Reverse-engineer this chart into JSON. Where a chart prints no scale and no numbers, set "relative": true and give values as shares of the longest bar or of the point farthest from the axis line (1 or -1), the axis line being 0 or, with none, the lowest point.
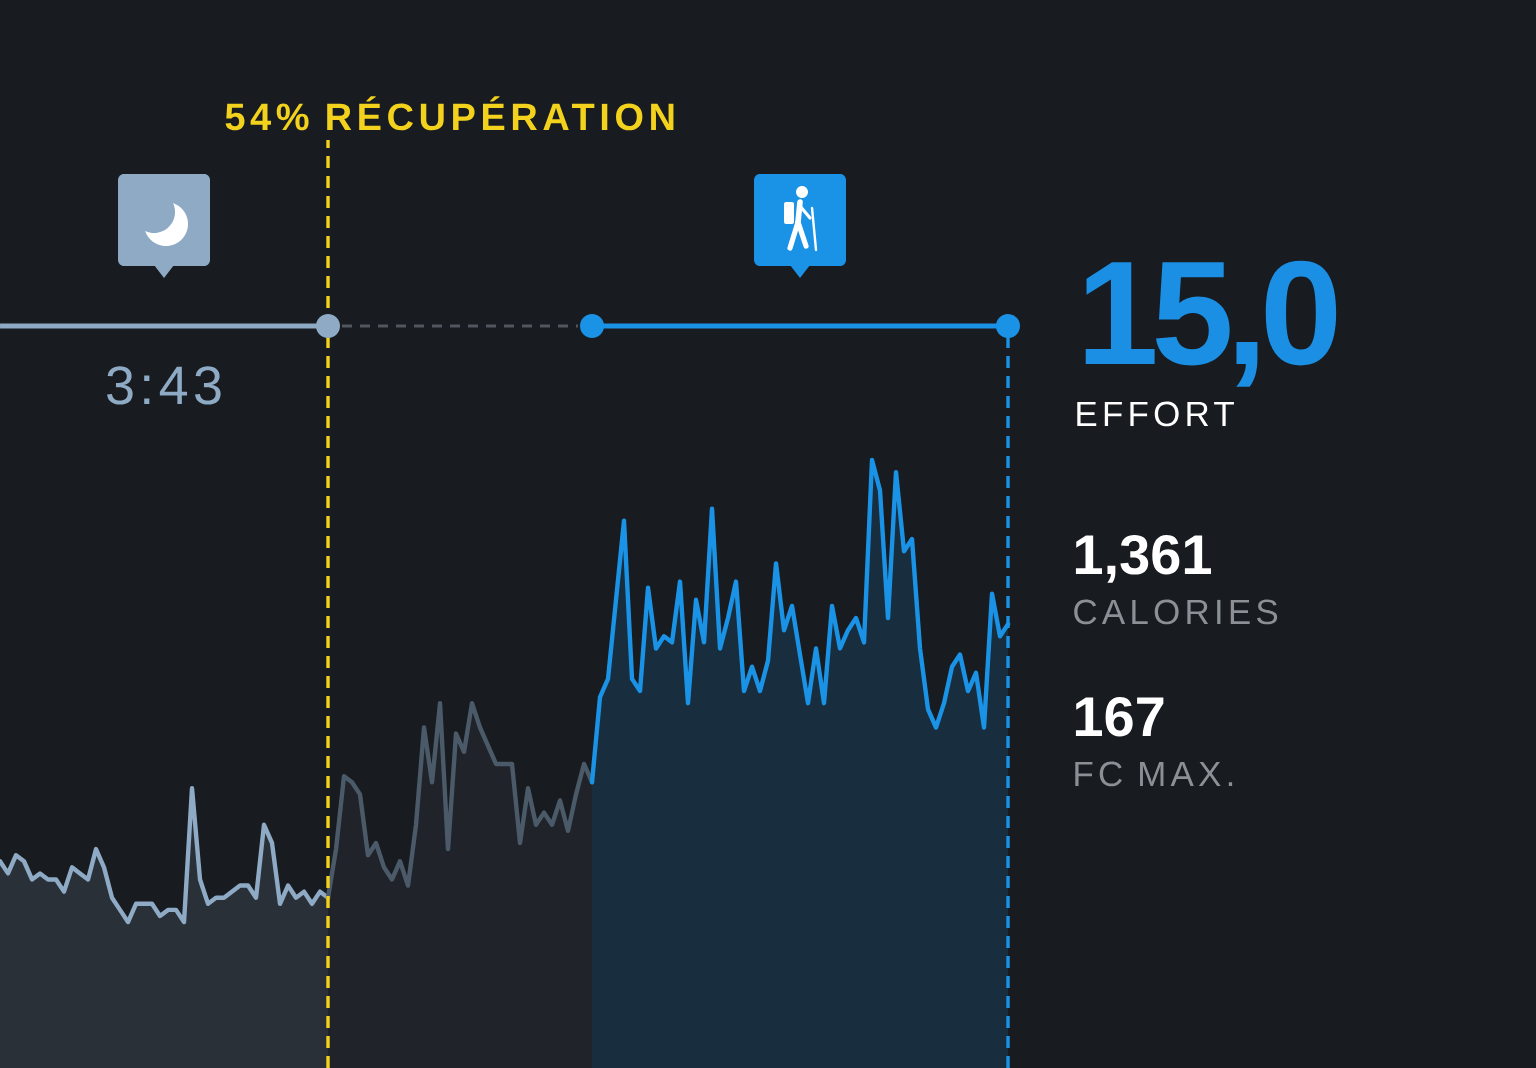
{
  "chart_data": [
    {
      "type": "area",
      "relative": true,
      "categories": [
        null,
        null,
        null,
        null,
        null,
        null,
        null,
        null,
        null,
        null,
        null,
        null,
        null,
        null,
        null,
        null,
        null,
        null,
        null,
        null,
        null,
        null,
        null,
        null,
        null,
        null,
        null,
        null,
        null,
        null,
        null,
        null,
        null,
        null,
        null,
        null,
        null,
        null,
        null,
        null,
        null,
        null,
        null,
        null,
        null,
        null,
        null,
        null,
        null,
        null,
        null,
        null,
        null,
        null,
        null,
        null,
        null,
        null,
        null,
        null,
        null,
        null,
        null,
        null,
        null,
        null,
        null,
        null,
        null,
        null,
        null,
        null,
        null,
        null,
        null,
        null,
        null,
        null,
        null,
        null,
        null,
        null,
        null,
        null,
        null,
        null,
        null,
        null,
        null,
        null,
        null,
        null,
        null,
        null,
        null,
        null,
        null,
        null,
        null,
        null,
        null,
        null,
        null,
        null,
        null,
        null,
        null,
        null,
        null,
        null,
        null,
        null,
        null,
        null,
        null,
        null,
        null,
        null,
        null,
        null,
        null,
        null,
        null,
        null,
        null,
        null,
        null
      ],
      "series": [
        {
          "color": "#8eaac4",
          "values": [
            0.34,
            0.32,
            0.35,
            0.34,
            0.31,
            0.32,
            0.31,
            0.31,
            0.29,
            0.33,
            0.32,
            0.31,
            0.36,
            0.33,
            0.28,
            0.26,
            0.24,
            0.27,
            0.27,
            0.27,
            0.25,
            0.26,
            0.26,
            0.24,
            0.46,
            0.31,
            0.27,
            0.28,
            0.28,
            0.29,
            0.3,
            0.3,
            0.28,
            0.4,
            0.37,
            0.27,
            0.3,
            0.28,
            0.29,
            0.27,
            0.29,
            0.28,
            null,
            null,
            null,
            null,
            null,
            null,
            null,
            null,
            null,
            null,
            null,
            null,
            null,
            null,
            null,
            null,
            null,
            null,
            null,
            null,
            null,
            null,
            null,
            null,
            null,
            null,
            null,
            null,
            null,
            null,
            null,
            null,
            null,
            null,
            null,
            null,
            null,
            null,
            null,
            null,
            null,
            null,
            null,
            null,
            null,
            null,
            null,
            null,
            null,
            null,
            null,
            null,
            null,
            null,
            null,
            null,
            null,
            null,
            null,
            null,
            null,
            null,
            null,
            null,
            null,
            null,
            null,
            null,
            null,
            null,
            null,
            null,
            null,
            null,
            null,
            null,
            null,
            null,
            null,
            null,
            null,
            null,
            null,
            null,
            null
          ]
        },
        {
          "color": "#4b5a68",
          "values": [
            null,
            null,
            null,
            null,
            null,
            null,
            null,
            null,
            null,
            null,
            null,
            null,
            null,
            null,
            null,
            null,
            null,
            null,
            null,
            null,
            null,
            null,
            null,
            null,
            null,
            null,
            null,
            null,
            null,
            null,
            null,
            null,
            null,
            null,
            null,
            null,
            null,
            null,
            null,
            null,
            null,
            0.28,
            0.36,
            0.48,
            0.47,
            0.45,
            0.35,
            0.37,
            0.33,
            0.31,
            0.34,
            0.3,
            0.4,
            0.56,
            0.47,
            0.6,
            0.36,
            0.55,
            0.52,
            0.6,
            0.56,
            0.53,
            0.5,
            0.5,
            0.5,
            0.37,
            0.46,
            0.4,
            0.42,
            0.4,
            0.44,
            0.39,
            0.45,
            0.5,
            0.47,
            null,
            null,
            null,
            null,
            null,
            null,
            null,
            null,
            null,
            null,
            null,
            null,
            null,
            null,
            null,
            null,
            null,
            null,
            null,
            null,
            null,
            null,
            null,
            null,
            null,
            null,
            null,
            null,
            null,
            null,
            null,
            null,
            null,
            null,
            null,
            null,
            null,
            null,
            null,
            null,
            null,
            null,
            null,
            null,
            null,
            null,
            null,
            null,
            null,
            null,
            null,
            null
          ]
        },
        {
          "color": "#1a93e6",
          "values": [
            null,
            null,
            null,
            null,
            null,
            null,
            null,
            null,
            null,
            null,
            null,
            null,
            null,
            null,
            null,
            null,
            null,
            null,
            null,
            null,
            null,
            null,
            null,
            null,
            null,
            null,
            null,
            null,
            null,
            null,
            null,
            null,
            null,
            null,
            null,
            null,
            null,
            null,
            null,
            null,
            null,
            null,
            null,
            null,
            null,
            null,
            null,
            null,
            null,
            null,
            null,
            null,
            null,
            null,
            null,
            null,
            null,
            null,
            null,
            null,
            null,
            null,
            null,
            null,
            null,
            null,
            null,
            null,
            null,
            null,
            null,
            null,
            null,
            null,
            0.47,
            0.61,
            0.64,
            0.77,
            0.9,
            0.64,
            0.62,
            0.79,
            0.69,
            0.71,
            0.7,
            0.8,
            0.6,
            0.77,
            0.7,
            0.92,
            0.69,
            0.74,
            0.8,
            0.62,
            0.66,
            0.62,
            0.67,
            0.83,
            0.72,
            0.76,
            0.68,
            0.6,
            0.69,
            0.6,
            0.76,
            0.69,
            0.72,
            0.74,
            0.7,
            1,
            0.95,
            0.74,
            0.98,
            0.85,
            0.87,
            0.69,
            0.59,
            0.56,
            0.6,
            0.66,
            0.68,
            0.62,
            0.65,
            0.56,
            0.78,
            0.71,
            0.73
          ]
        }
      ],
      "annotations": [
        "54% RÉCUPÉRATION",
        "3:43"
      ]
    },
    {
      "type": "other",
      "annotations": [
        "15,0",
        "EFFORT",
        "1,361",
        "CALORIES",
        "167",
        "FC MAX."
      ]
    }
  ]
}
